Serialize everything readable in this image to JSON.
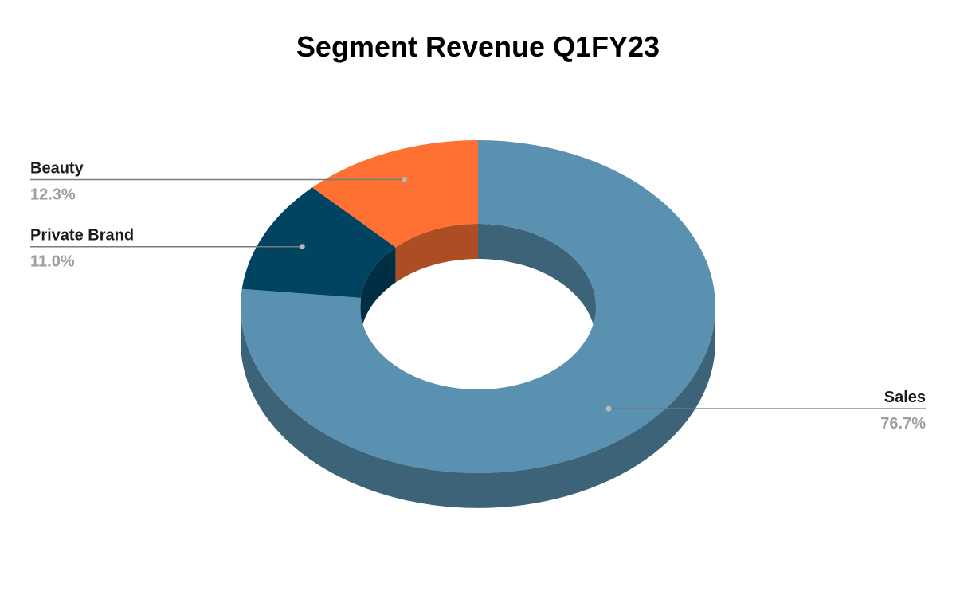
{
  "chart_data": {
    "type": "pie",
    "variant": "3d-donut",
    "title": "Segment Revenue Q1FY23",
    "slices": [
      {
        "name": "Sales",
        "value": 76.7,
        "label": "76.7%",
        "color": "#5a91b0"
      },
      {
        "name": "Private Brand",
        "value": 11.0,
        "label": "11.0%",
        "color": "#004461"
      },
      {
        "name": "Beauty",
        "value": 12.3,
        "label": "12.3%",
        "color": "#ff7133"
      }
    ],
    "legend": "none"
  }
}
